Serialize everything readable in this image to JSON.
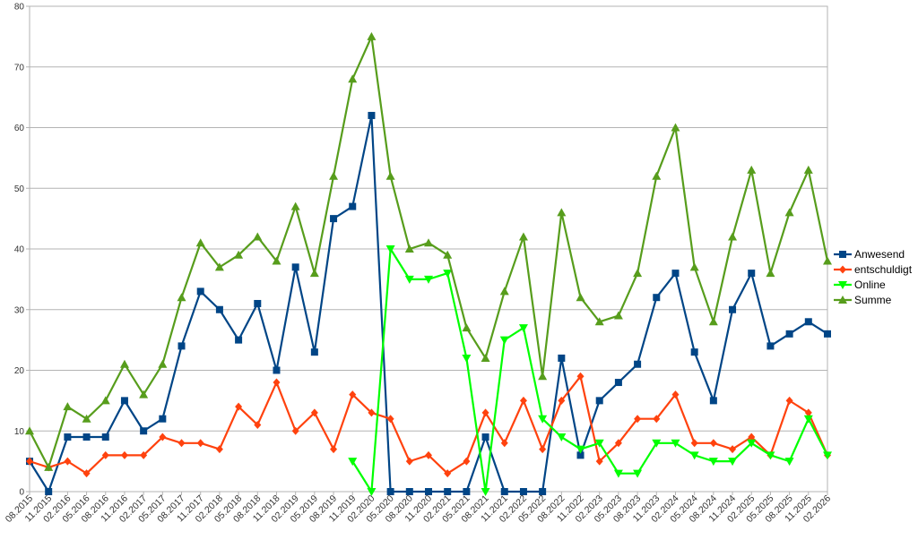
{
  "chart_data": {
    "type": "line",
    "title": "",
    "xlabel": "",
    "ylabel": "",
    "ylim": [
      0,
      80
    ],
    "yticks": [
      0,
      10,
      20,
      30,
      40,
      50,
      60,
      70,
      80
    ],
    "grid": "horizontal",
    "legend_position": "right",
    "categories": [
      "08.2015",
      "11.2015",
      "02.2016",
      "05.2016",
      "08.2016",
      "11.2016",
      "02.2017",
      "05.2017",
      "08.2017",
      "11.2017",
      "02.2018",
      "05.2018",
      "08.2018",
      "11.2018",
      "02.2019",
      "05.2019",
      "08.2019",
      "11.2019",
      "02.2020",
      "05.2020",
      "08.2020",
      "11.2020",
      "02.2021",
      "05.2021",
      "08.2021",
      "11.2021",
      "02.2022",
      "05.2022",
      "08.2022",
      "11.2022",
      "02.2023",
      "05.2023",
      "08.2023",
      "11.2023",
      "02.2024",
      "05.2024",
      "08.2024",
      "11.2024",
      "02.2025",
      "05.2025",
      "08.2025",
      "11.2025",
      "02.2026"
    ],
    "series": [
      {
        "name": "Anwesend",
        "color": "#004586",
        "marker": "square",
        "values": [
          5,
          0,
          9,
          9,
          9,
          15,
          10,
          12,
          24,
          33,
          30,
          25,
          31,
          20,
          37,
          23,
          45,
          47,
          62,
          0,
          0,
          0,
          0,
          0,
          9,
          0,
          0,
          0,
          22,
          6,
          15,
          18,
          21,
          32,
          36,
          23,
          15,
          30,
          36,
          24,
          26,
          28,
          26
        ]
      },
      {
        "name": "entschuldigt",
        "color": "#ff420e",
        "marker": "diamond",
        "values": [
          5,
          4,
          5,
          3,
          6,
          6,
          6,
          9,
          8,
          8,
          7,
          14,
          11,
          18,
          10,
          13,
          7,
          16,
          13,
          12,
          5,
          6,
          3,
          5,
          13,
          8,
          15,
          7,
          15,
          19,
          5,
          8,
          12,
          12,
          16,
          8,
          8,
          7,
          9,
          6,
          15,
          13,
          6
        ]
      },
      {
        "name": "Online",
        "color": "#00ff00",
        "marker": "triangle-down",
        "values": [
          null,
          null,
          null,
          null,
          null,
          null,
          null,
          null,
          null,
          null,
          null,
          null,
          null,
          null,
          null,
          null,
          null,
          5,
          0,
          40,
          35,
          35,
          36,
          22,
          0,
          25,
          27,
          12,
          9,
          7,
          8,
          3,
          3,
          8,
          8,
          6,
          5,
          5,
          8,
          6,
          5,
          12,
          6
        ]
      },
      {
        "name": "Summe",
        "color": "#579d1c",
        "marker": "triangle-up",
        "values": [
          10,
          4,
          14,
          12,
          15,
          21,
          16,
          21,
          32,
          41,
          37,
          39,
          42,
          38,
          47,
          36,
          52,
          68,
          75,
          52,
          40,
          41,
          39,
          27,
          22,
          33,
          42,
          19,
          46,
          32,
          28,
          29,
          36,
          52,
          60,
          37,
          28,
          42,
          53,
          36,
          46,
          53,
          38
        ]
      }
    ]
  }
}
